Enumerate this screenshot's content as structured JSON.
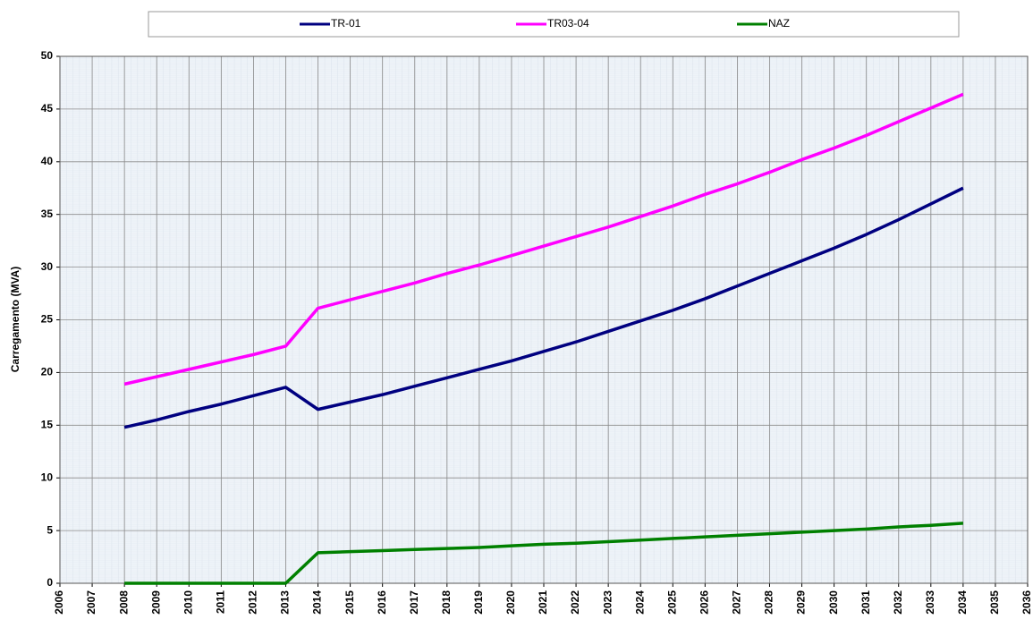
{
  "chart_data": {
    "type": "line",
    "ylabel": "Carregamento (MVA)",
    "x": [
      2008,
      2009,
      2010,
      2011,
      2012,
      2013,
      2014,
      2015,
      2016,
      2017,
      2018,
      2019,
      2020,
      2021,
      2022,
      2023,
      2024,
      2025,
      2026,
      2027,
      2028,
      2029,
      2030,
      2031,
      2032,
      2033,
      2034
    ],
    "series": [
      {
        "name": "TR-01",
        "color": "#000080",
        "values": [
          14.8,
          15.5,
          16.3,
          17.0,
          17.8,
          18.6,
          16.5,
          17.2,
          17.9,
          18.7,
          19.5,
          20.3,
          21.1,
          22.0,
          22.9,
          23.9,
          24.9,
          25.9,
          27.0,
          28.2,
          29.4,
          30.6,
          31.8,
          33.1,
          34.5,
          36.0,
          37.5
        ]
      },
      {
        "name": "TR03-04",
        "color": "#ff00ff",
        "values": [
          18.9,
          19.6,
          20.3,
          21.0,
          21.7,
          22.5,
          26.1,
          26.9,
          27.7,
          28.5,
          29.4,
          30.2,
          31.1,
          32.0,
          32.9,
          33.8,
          34.8,
          35.8,
          36.9,
          37.9,
          39.0,
          40.2,
          41.3,
          42.5,
          43.8,
          45.1,
          46.4
        ]
      },
      {
        "name": "NAZ",
        "color": "#008000",
        "values": [
          0,
          0,
          0,
          0,
          0,
          0,
          2.9,
          3.0,
          3.1,
          3.2,
          3.3,
          3.4,
          3.55,
          3.7,
          3.8,
          3.95,
          4.1,
          4.25,
          4.4,
          4.55,
          4.7,
          4.85,
          5.0,
          5.15,
          5.35,
          5.5,
          5.7
        ]
      }
    ],
    "xlim": [
      2006,
      2036
    ],
    "xticks": [
      2006,
      2007,
      2008,
      2009,
      2010,
      2011,
      2012,
      2013,
      2014,
      2015,
      2016,
      2017,
      2018,
      2019,
      2020,
      2021,
      2022,
      2023,
      2024,
      2025,
      2026,
      2027,
      2028,
      2029,
      2030,
      2031,
      2032,
      2033,
      2034,
      2035,
      2036
    ],
    "ylim": [
      0,
      50
    ],
    "yticks": [
      0,
      5,
      10,
      15,
      20,
      25,
      30,
      35,
      40,
      45,
      50
    ],
    "grid": true,
    "legend": "top"
  }
}
